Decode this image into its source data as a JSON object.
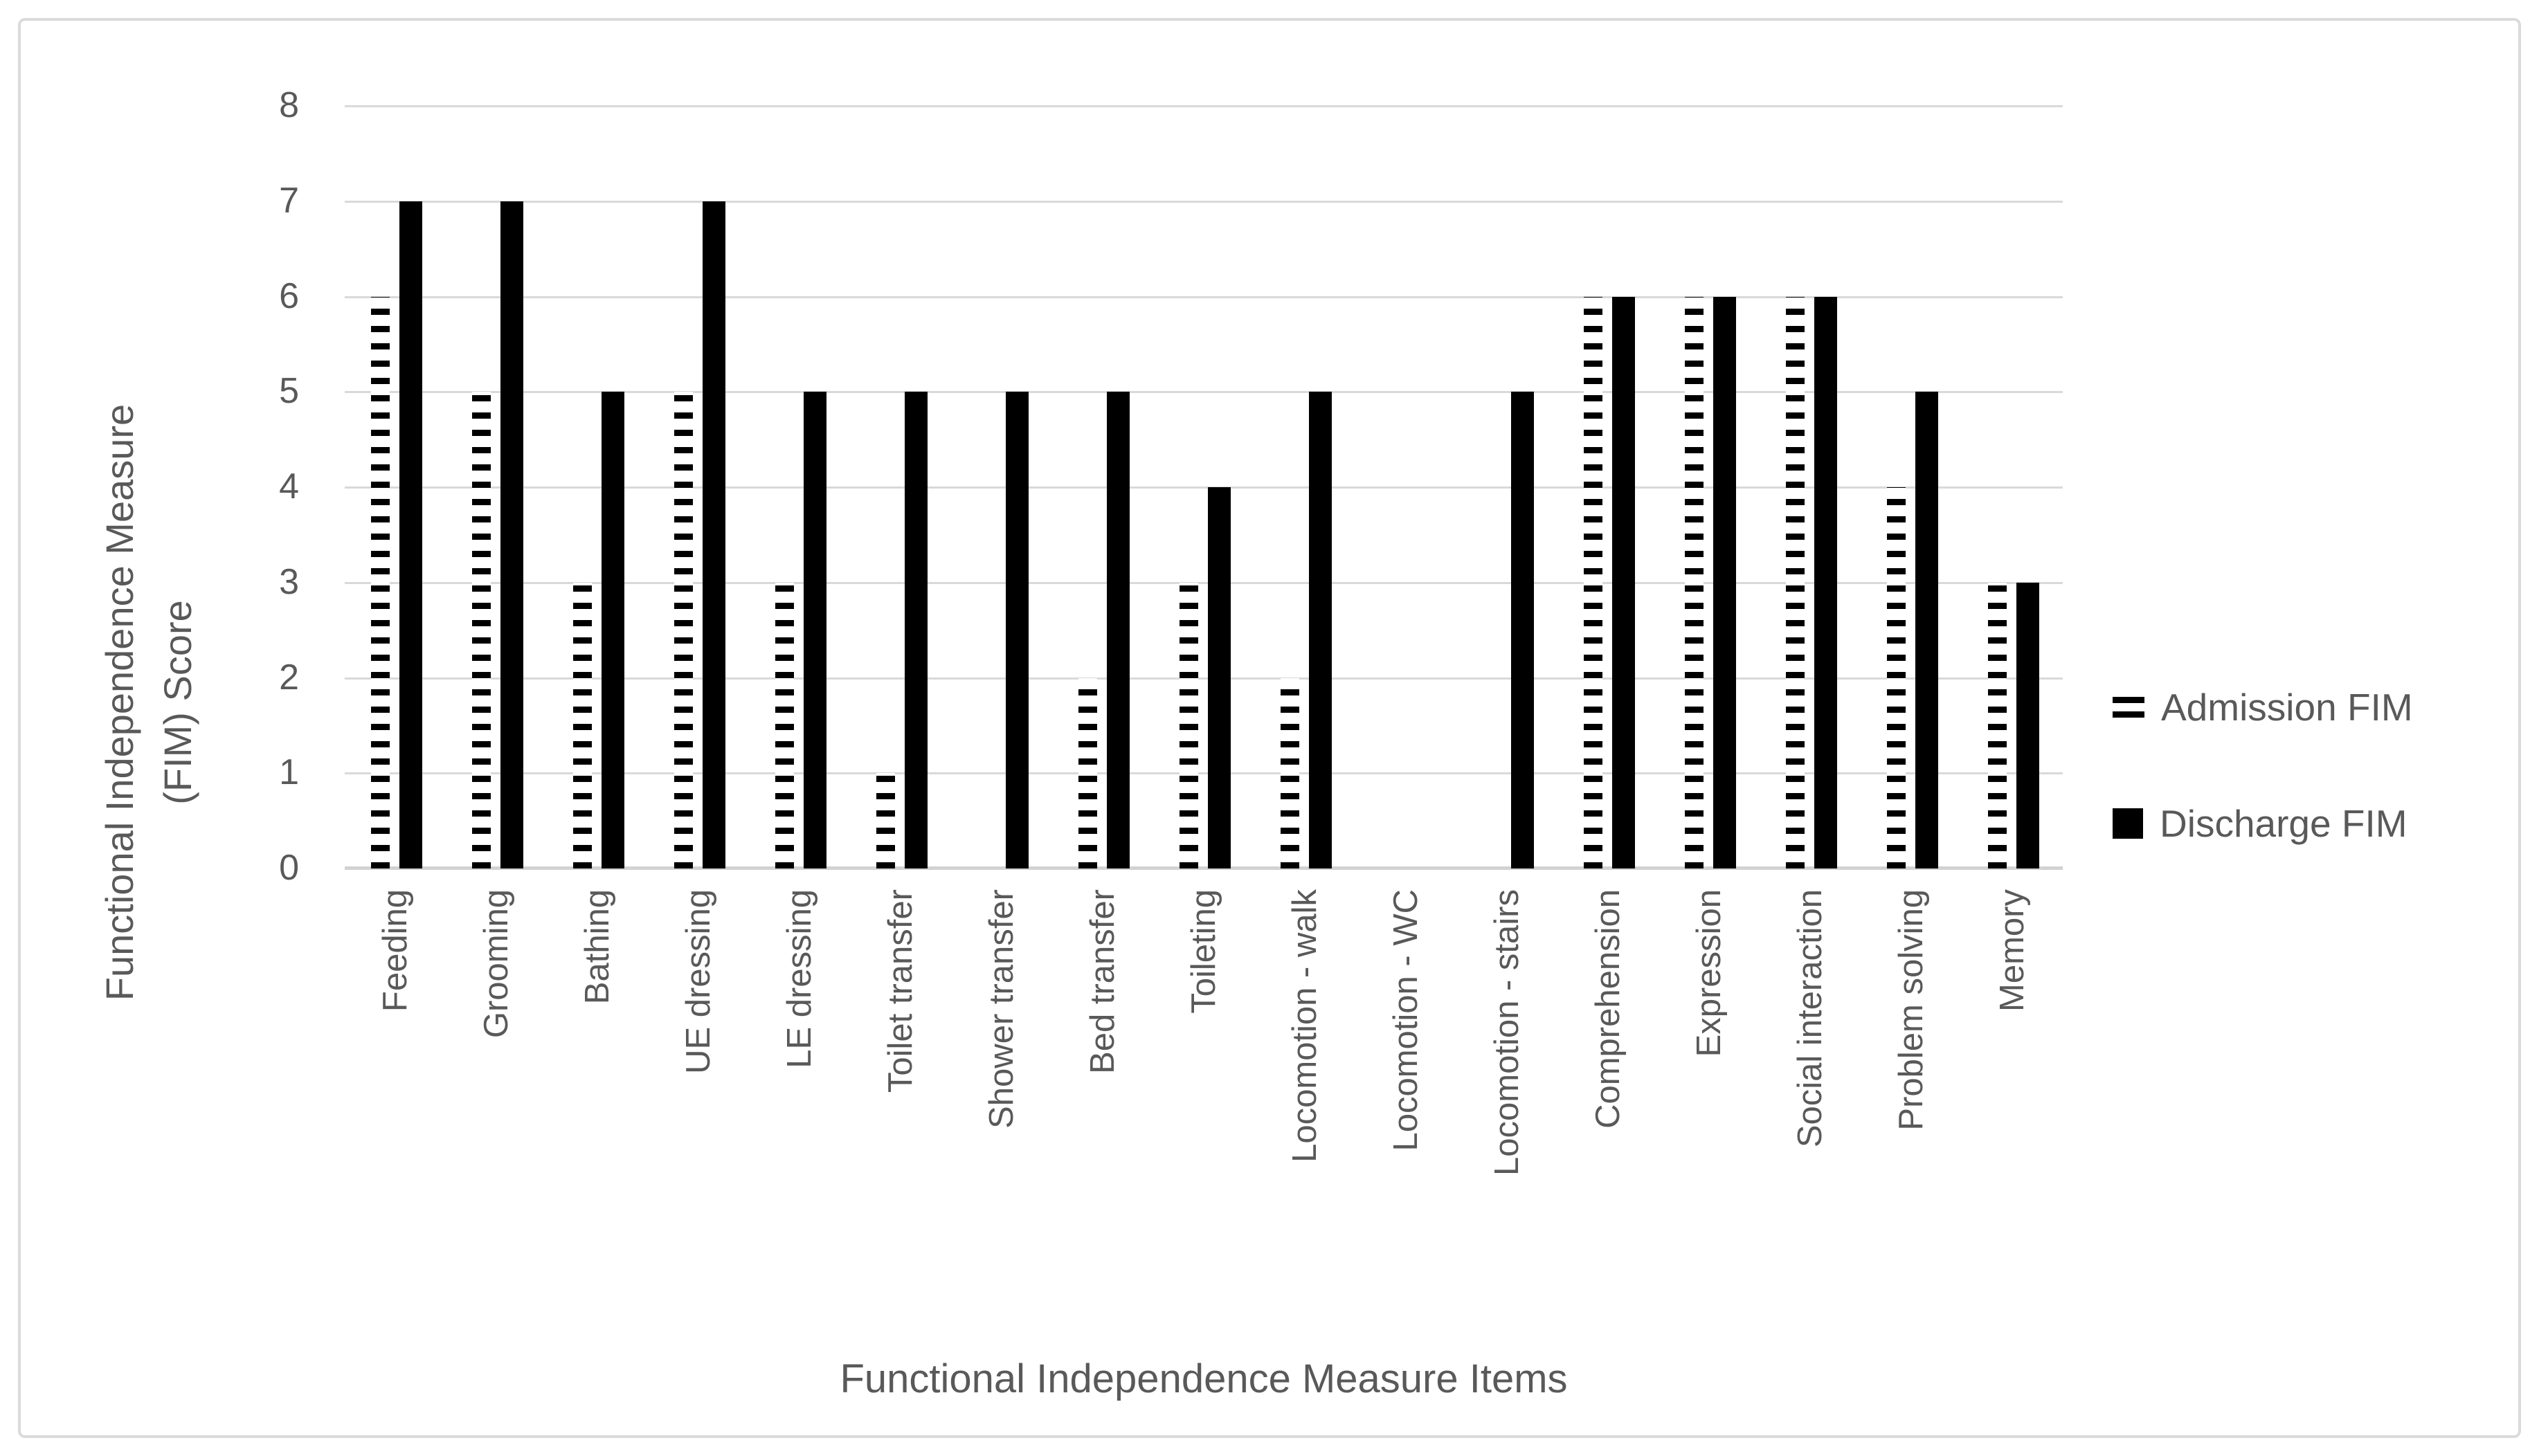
{
  "chart_data": {
    "type": "bar",
    "title": "",
    "xlabel": "Functional Independence Measure Items",
    "ylabel": "Functional Independence Measure (FIM) Score",
    "ylim": [
      0,
      8
    ],
    "yticks": [
      0,
      1,
      2,
      3,
      4,
      5,
      6,
      7,
      8
    ],
    "grid": true,
    "legend_position": "right",
    "categories": [
      "Feeding",
      "Grooming",
      "Bathing",
      "UE dressing",
      "LE dressing",
      "Toilet transfer",
      "Shower transfer",
      "Bed transfer",
      "Toileting",
      "Locomotion - walk",
      "Locomotion - WC",
      "Locomotion - stairs",
      "Comprehension",
      "Expression",
      "Social interaction",
      "Problem solving",
      "Memory"
    ],
    "series": [
      {
        "name": "Admission FIM",
        "style": "dashed",
        "values": [
          6,
          5,
          3,
          5,
          3,
          1,
          0,
          2,
          3,
          2,
          0,
          0,
          6,
          6,
          6,
          4,
          3
        ]
      },
      {
        "name": "Discharge FIM",
        "style": "solid",
        "values": [
          7,
          7,
          5,
          7,
          5,
          5,
          5,
          5,
          4,
          5,
          0,
          5,
          6,
          6,
          6,
          5,
          3
        ]
      }
    ],
    "colors": {
      "bar": "#000000",
      "text": "#595959",
      "gridline": "#D9D9D9",
      "axis_line": "#D2D2D2",
      "frame_border": "#DBDBDB",
      "background": "#FFFFFF"
    }
  }
}
